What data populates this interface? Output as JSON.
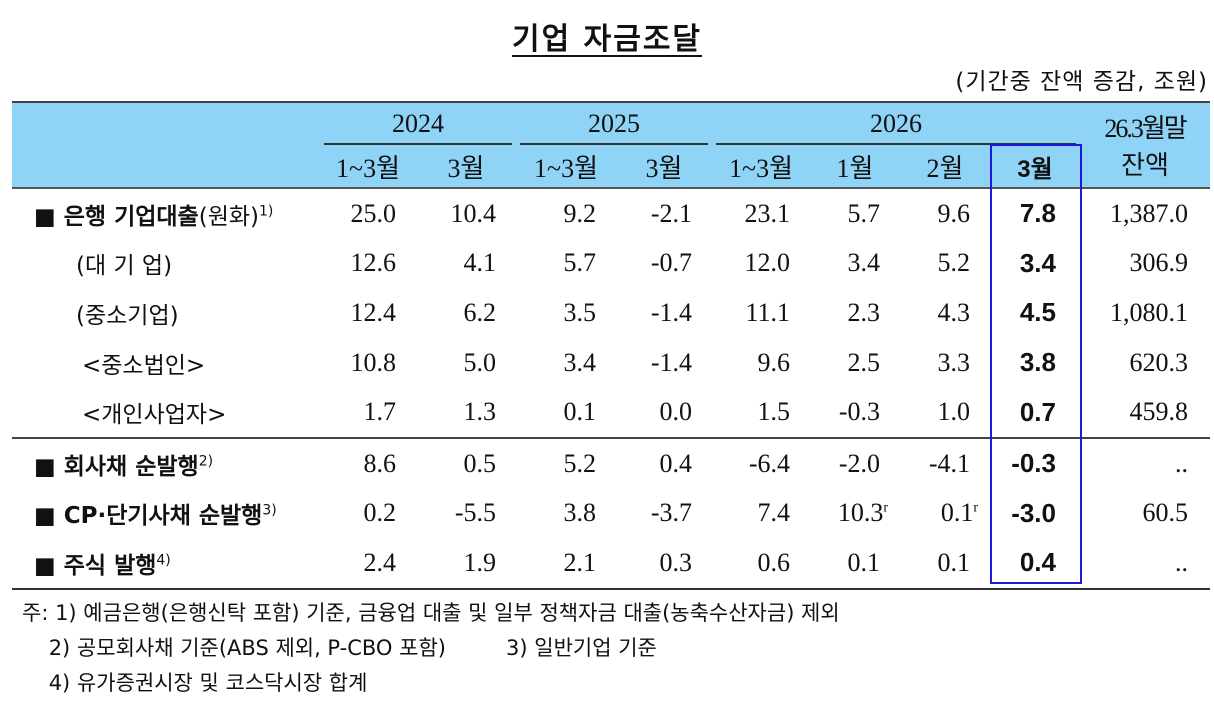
{
  "title": "기업 자금조달",
  "unit": "(기간중 잔액 증감, 조원)",
  "header": {
    "years": [
      "2024",
      "2025",
      "2026"
    ],
    "periods": [
      "1~3월",
      "3월",
      "1~3월",
      "3월",
      "1~3월",
      "1월",
      "2월",
      "3월"
    ],
    "balance_line1": "26.3월말",
    "balance_line2": "잔액"
  },
  "rows": [
    {
      "label": "■ 은행 기업대출",
      "label_suffix": "(원화)",
      "note": "1)",
      "values": [
        "25.0",
        "10.4",
        "9.2",
        "-2.1",
        "23.1",
        "5.7",
        "9.6",
        "7.8"
      ],
      "balance": "1,387.0"
    },
    {
      "label": "(대 기 업)",
      "values": [
        "12.6",
        "4.1",
        "5.7",
        "-0.7",
        "12.0",
        "3.4",
        "5.2",
        "3.4"
      ],
      "balance": "306.9"
    },
    {
      "label": "(중소기업)",
      "values": [
        "12.4",
        "6.2",
        "3.5",
        "-1.4",
        "11.1",
        "2.3",
        "4.3",
        "4.5"
      ],
      "balance": "1,080.1"
    },
    {
      "label": " <중소법인>",
      "values": [
        "10.8",
        "5.0",
        "3.4",
        "-1.4",
        "9.6",
        "2.5",
        "3.3",
        "3.8"
      ],
      "balance": "620.3"
    },
    {
      "label": " <개인사업자>",
      "values": [
        "1.7",
        "1.3",
        "0.1",
        "0.0",
        "1.5",
        "-0.3",
        "1.0",
        "0.7"
      ],
      "balance": "459.8"
    },
    {
      "label": "■ 회사채 순발행",
      "note": "2)",
      "values": [
        "8.6",
        "0.5",
        "5.2",
        "0.4",
        "-6.4",
        "-2.0",
        "-4.1",
        "-0.3"
      ],
      "balance": ".."
    },
    {
      "label": "■ CP·단기사채 순발행",
      "note": "3)",
      "values": [
        "0.2",
        "-5.5",
        "3.8",
        "-3.7",
        "7.4",
        "10.3",
        "0.1",
        "-3.0"
      ],
      "revised": [
        "",
        "",
        "",
        "",
        "",
        "r",
        "r",
        ""
      ],
      "balance": "60.5"
    },
    {
      "label": "■ 주식 발행",
      "note": "4)",
      "values": [
        "2.4",
        "1.9",
        "2.1",
        "0.3",
        "0.6",
        "0.1",
        "0.1",
        "0.4"
      ],
      "balance": ".."
    }
  ],
  "notes": [
    "주: 1) 예금은행(은행신탁 포함) 기준, 금융업 대출 및 일부 정책자금 대출(농축수산자금) 제외",
    "    2) 공모회사채 기준(ABS 제외, P-CBO 포함)         3) 일반기업 기준",
    "    4) 유가증권시장 및 코스닥시장 합계"
  ]
}
